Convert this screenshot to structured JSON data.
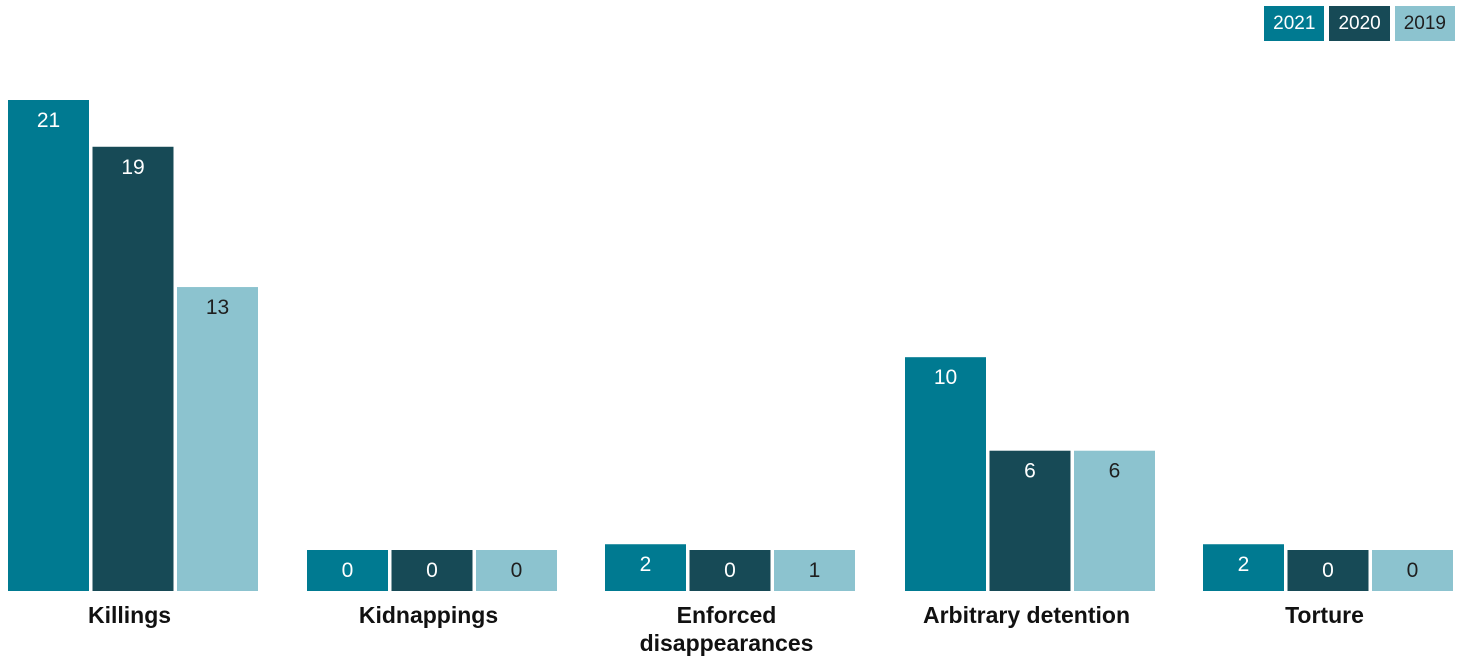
{
  "chart_data": {
    "type": "bar",
    "categories": [
      "Killings",
      "Kidnappings",
      "Enforced disappearances",
      "Arbitrary detention",
      "Torture"
    ],
    "category_lines": [
      [
        "Killings"
      ],
      [
        "Kidnappings"
      ],
      [
        "Enforced",
        "disappearances"
      ],
      [
        "Arbitrary detention"
      ],
      [
        "Torture"
      ]
    ],
    "series": [
      {
        "name": "2021",
        "color": "#007a91",
        "label_color": "#ffffff",
        "values": [
          21,
          0,
          2,
          10,
          2
        ]
      },
      {
        "name": "2020",
        "color": "#174a56",
        "label_color": "#ffffff",
        "values": [
          19,
          0,
          0,
          6,
          0
        ]
      },
      {
        "name": "2019",
        "color": "#8cc3cf",
        "label_color": "#1f1f1f",
        "values": [
          13,
          0,
          1,
          6,
          0
        ]
      }
    ],
    "legend_position": "top-right",
    "grid": false
  },
  "legend": {
    "items": [
      {
        "label": "2021",
        "color": "#007a91"
      },
      {
        "label": "2020",
        "color": "#174a56"
      },
      {
        "label": "2019",
        "color": "#8cc3cf"
      }
    ]
  }
}
